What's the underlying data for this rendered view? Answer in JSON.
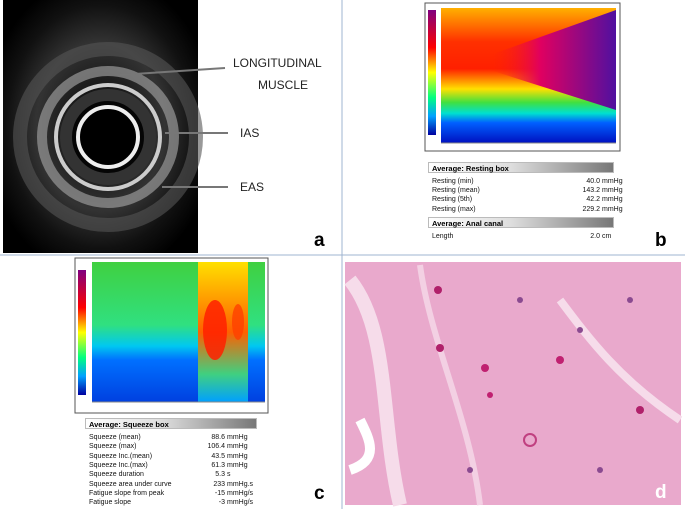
{
  "panel_a": {
    "labels": [
      "LONGITUDINAL",
      "MUSCLE",
      "IAS",
      "EAS"
    ],
    "letter": "a"
  },
  "panel_b": {
    "letter": "b",
    "sections": [
      {
        "header": "Average: Resting box",
        "rows": [
          {
            "label": "Resting (min)",
            "value": "40.0",
            "unit": "mmHg"
          },
          {
            "label": "Resting (mean)",
            "value": "143.2",
            "unit": "mmHg"
          },
          {
            "label": "Resting (5th)",
            "value": "42.2",
            "unit": "mmHg"
          },
          {
            "label": "Resting (max)",
            "value": "229.2",
            "unit": "mmHg"
          }
        ]
      },
      {
        "header": "Average: Anal canal",
        "rows": [
          {
            "label": "Length",
            "value": "2.0",
            "unit": "cm"
          }
        ]
      }
    ]
  },
  "panel_c": {
    "letter": "c",
    "sections": [
      {
        "header": "Average: Squeeze box",
        "rows": [
          {
            "label": "Squeeze (mean)",
            "value": "88.6",
            "unit": "mmHg"
          },
          {
            "label": "Squeeze (max)",
            "value": "106.4",
            "unit": "mmHg"
          },
          {
            "label": "Squeeze Inc.(mean)",
            "value": "43.5",
            "unit": "mmHg"
          },
          {
            "label": "Squeeze Inc.(max)",
            "value": "61.3",
            "unit": "mmHg"
          },
          {
            "label": "Squeeze duration",
            "value": "5.3",
            "unit": "s"
          },
          {
            "label": "Squeeze area under curve",
            "value": "233",
            "unit": "mmHg.s"
          },
          {
            "label": "Fatigue slope from peak",
            "value": "-15",
            "unit": "mmHg/s"
          },
          {
            "label": "Fatigue slope",
            "value": "-3",
            "unit": "mmHg/s"
          }
        ]
      }
    ]
  },
  "panel_d": {
    "letter": "d"
  }
}
